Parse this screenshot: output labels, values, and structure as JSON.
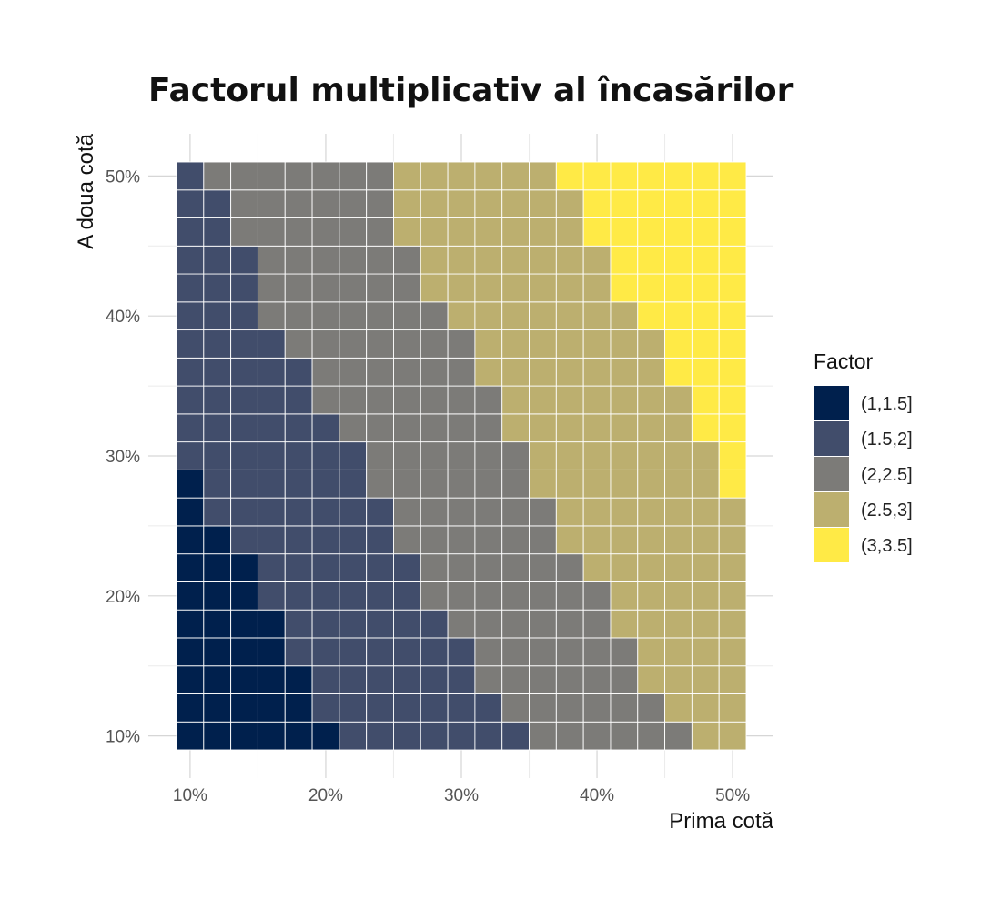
{
  "chart_data": {
    "type": "heatmap",
    "title": "Factorul multiplicativ al încasărilor",
    "xlabel": "Prima cotă",
    "ylabel": "A doua cotă",
    "x_ticks": [
      "10%",
      "20%",
      "30%",
      "40%",
      "50%"
    ],
    "y_ticks": [
      "10%",
      "20%",
      "30%",
      "40%",
      "50%"
    ],
    "xlim": [
      0.09,
      0.51
    ],
    "ylim": [
      0.09,
      0.51
    ],
    "x": [
      0.1,
      0.12,
      0.14,
      0.16,
      0.18,
      0.2,
      0.22,
      0.24,
      0.26,
      0.28,
      0.3,
      0.32,
      0.34,
      0.36,
      0.38,
      0.4,
      0.42,
      0.44,
      0.46,
      0.48,
      0.5
    ],
    "y": [
      0.1,
      0.12,
      0.14,
      0.16,
      0.18,
      0.2,
      0.22,
      0.24,
      0.26,
      0.28,
      0.3,
      0.32,
      0.34,
      0.36,
      0.38,
      0.4,
      0.42,
      0.44,
      0.46,
      0.48,
      0.5
    ],
    "class_index_rows": [
      [
        0,
        0,
        0,
        0,
        0,
        0,
        1,
        1,
        1,
        1,
        1,
        1,
        1,
        2,
        2,
        2,
        2,
        2,
        2,
        3,
        3
      ],
      [
        0,
        0,
        0,
        0,
        0,
        1,
        1,
        1,
        1,
        1,
        1,
        1,
        2,
        2,
        2,
        2,
        2,
        2,
        3,
        3,
        3
      ],
      [
        0,
        0,
        0,
        0,
        0,
        1,
        1,
        1,
        1,
        1,
        1,
        2,
        2,
        2,
        2,
        2,
        2,
        3,
        3,
        3,
        3
      ],
      [
        0,
        0,
        0,
        0,
        1,
        1,
        1,
        1,
        1,
        1,
        1,
        2,
        2,
        2,
        2,
        2,
        2,
        3,
        3,
        3,
        3
      ],
      [
        0,
        0,
        0,
        0,
        1,
        1,
        1,
        1,
        1,
        1,
        2,
        2,
        2,
        2,
        2,
        2,
        3,
        3,
        3,
        3,
        3
      ],
      [
        0,
        0,
        0,
        1,
        1,
        1,
        1,
        1,
        1,
        2,
        2,
        2,
        2,
        2,
        2,
        2,
        3,
        3,
        3,
        3,
        3
      ],
      [
        0,
        0,
        0,
        1,
        1,
        1,
        1,
        1,
        1,
        2,
        2,
        2,
        2,
        2,
        2,
        3,
        3,
        3,
        3,
        3,
        3
      ],
      [
        0,
        0,
        1,
        1,
        1,
        1,
        1,
        1,
        2,
        2,
        2,
        2,
        2,
        2,
        3,
        3,
        3,
        3,
        3,
        3,
        3
      ],
      [
        0,
        1,
        1,
        1,
        1,
        1,
        1,
        1,
        2,
        2,
        2,
        2,
        2,
        2,
        3,
        3,
        3,
        3,
        3,
        3,
        3
      ],
      [
        0,
        1,
        1,
        1,
        1,
        1,
        1,
        2,
        2,
        2,
        2,
        2,
        2,
        3,
        3,
        3,
        3,
        3,
        3,
        3,
        4
      ],
      [
        1,
        1,
        1,
        1,
        1,
        1,
        1,
        2,
        2,
        2,
        2,
        2,
        2,
        3,
        3,
        3,
        3,
        3,
        3,
        3,
        4
      ],
      [
        1,
        1,
        1,
        1,
        1,
        1,
        2,
        2,
        2,
        2,
        2,
        2,
        3,
        3,
        3,
        3,
        3,
        3,
        3,
        4,
        4
      ],
      [
        1,
        1,
        1,
        1,
        1,
        2,
        2,
        2,
        2,
        2,
        2,
        2,
        3,
        3,
        3,
        3,
        3,
        3,
        3,
        4,
        4
      ],
      [
        1,
        1,
        1,
        1,
        1,
        2,
        2,
        2,
        2,
        2,
        2,
        3,
        3,
        3,
        3,
        3,
        3,
        3,
        4,
        4,
        4
      ],
      [
        1,
        1,
        1,
        1,
        2,
        2,
        2,
        2,
        2,
        2,
        2,
        3,
        3,
        3,
        3,
        3,
        3,
        3,
        4,
        4,
        4
      ],
      [
        1,
        1,
        1,
        2,
        2,
        2,
        2,
        2,
        2,
        2,
        3,
        3,
        3,
        3,
        3,
        3,
        3,
        4,
        4,
        4,
        4
      ],
      [
        1,
        1,
        1,
        2,
        2,
        2,
        2,
        2,
        2,
        3,
        3,
        3,
        3,
        3,
        3,
        3,
        4,
        4,
        4,
        4,
        4
      ],
      [
        1,
        1,
        1,
        2,
        2,
        2,
        2,
        2,
        2,
        3,
        3,
        3,
        3,
        3,
        3,
        3,
        4,
        4,
        4,
        4,
        4
      ],
      [
        1,
        1,
        2,
        2,
        2,
        2,
        2,
        2,
        3,
        3,
        3,
        3,
        3,
        3,
        3,
        4,
        4,
        4,
        4,
        4,
        4
      ],
      [
        1,
        1,
        2,
        2,
        2,
        2,
        2,
        2,
        3,
        3,
        3,
        3,
        3,
        3,
        3,
        4,
        4,
        4,
        4,
        4,
        4
      ],
      [
        1,
        2,
        2,
        2,
        2,
        2,
        2,
        2,
        3,
        3,
        3,
        3,
        3,
        3,
        4,
        4,
        4,
        4,
        4,
        4,
        4
      ]
    ],
    "legend": {
      "title": "Factor",
      "placement": "right",
      "classes": [
        "(1,1.5]",
        "(1.5,2]",
        "(2,2.5]",
        "(2.5,3]",
        "(3,3.5]"
      ],
      "colors": [
        "#00204d",
        "#414d6b",
        "#7c7b78",
        "#bcaf6f",
        "#ffea46"
      ]
    },
    "grid": true
  }
}
